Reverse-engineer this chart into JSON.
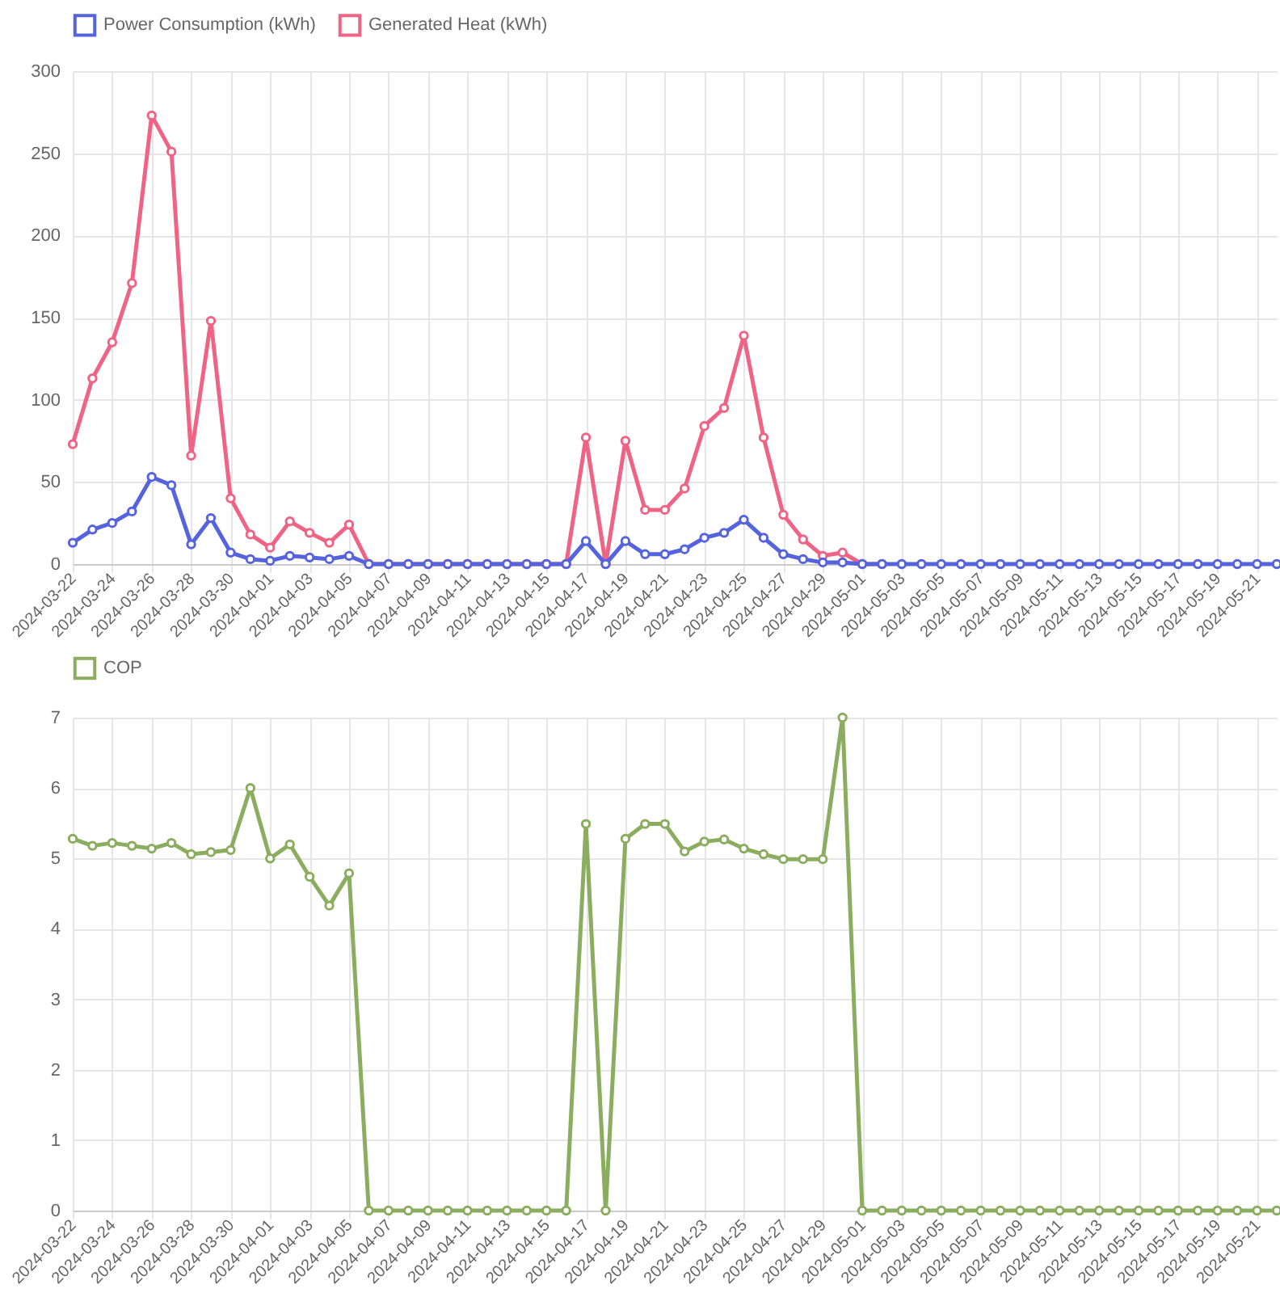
{
  "chart_data": [
    {
      "type": "line",
      "categories": [
        "2024-03-22",
        null,
        "2024-03-24",
        null,
        "2024-03-26",
        null,
        "2024-03-28",
        null,
        "2024-03-30",
        null,
        "2024-04-01",
        null,
        "2024-04-03",
        null,
        "2024-04-05",
        null,
        "2024-04-07",
        null,
        "2024-04-09",
        null,
        "2024-04-11",
        null,
        "2024-04-13",
        null,
        "2024-04-15",
        null,
        "2024-04-17",
        null,
        "2024-04-19",
        null,
        "2024-04-21",
        null,
        "2024-04-23",
        null,
        "2024-04-25",
        null,
        "2024-04-27",
        null,
        "2024-04-29",
        null,
        "2024-05-01",
        null,
        "2024-05-03",
        null,
        "2024-05-05",
        null,
        "2024-05-07",
        null,
        "2024-05-09",
        null,
        "2024-05-11",
        null,
        "2024-05-13",
        null,
        "2024-05-15",
        null,
        "2024-05-17",
        null,
        "2024-05-19",
        null,
        "2024-05-21",
        null
      ],
      "series": [
        {
          "name": "Power Consumption (kWh)",
          "color": "#5563de",
          "values": [
            13,
            21,
            25,
            32,
            53,
            48,
            12,
            28,
            7,
            3,
            2,
            5,
            4,
            3,
            5,
            0,
            0,
            0,
            0,
            0,
            0,
            0,
            0,
            0,
            0,
            0,
            14,
            0,
            14,
            6,
            6,
            9,
            16,
            19,
            27,
            16,
            6,
            3,
            1,
            1,
            0,
            0,
            0,
            0,
            0,
            0,
            0,
            0,
            0,
            0,
            0,
            0,
            0,
            0,
            0,
            0,
            0,
            0,
            0,
            0,
            0,
            0
          ]
        },
        {
          "name": "Generated Heat (kWh)",
          "color": "#ef6384",
          "values": [
            73,
            113,
            135,
            171,
            273,
            251,
            66,
            148,
            40,
            18,
            10,
            26,
            19,
            13,
            24,
            0,
            0,
            0,
            0,
            0,
            0,
            0,
            0,
            0,
            0,
            0,
            77,
            0,
            75,
            33,
            33,
            46,
            84,
            95,
            139,
            77,
            30,
            15,
            5,
            7,
            0,
            0,
            null,
            null,
            null,
            null,
            null,
            null,
            null,
            null,
            null,
            null,
            null,
            null,
            null,
            null,
            null,
            null,
            null,
            null,
            null,
            null
          ]
        }
      ],
      "ylim": [
        0,
        300
      ],
      "yticks": [
        0,
        50,
        100,
        150,
        200,
        250,
        300
      ],
      "grid": true,
      "legend": "top",
      "marker": "circle"
    },
    {
      "type": "line",
      "categories": [
        "2024-03-22",
        null,
        "2024-03-24",
        null,
        "2024-03-26",
        null,
        "2024-03-28",
        null,
        "2024-03-30",
        null,
        "2024-04-01",
        null,
        "2024-04-03",
        null,
        "2024-04-05",
        null,
        "2024-04-07",
        null,
        "2024-04-09",
        null,
        "2024-04-11",
        null,
        "2024-04-13",
        null,
        "2024-04-15",
        null,
        "2024-04-17",
        null,
        "2024-04-19",
        null,
        "2024-04-21",
        null,
        "2024-04-23",
        null,
        "2024-04-25",
        null,
        "2024-04-27",
        null,
        "2024-04-29",
        null,
        "2024-05-01",
        null,
        "2024-05-03",
        null,
        "2024-05-05",
        null,
        "2024-05-07",
        null,
        "2024-05-09",
        null,
        "2024-05-11",
        null,
        "2024-05-13",
        null,
        "2024-05-15",
        null,
        "2024-05-17",
        null,
        "2024-05-19",
        null,
        "2024-05-21",
        null
      ],
      "series": [
        {
          "name": "COP",
          "color": "#8aad5f",
          "values": [
            5.28,
            5.18,
            5.22,
            5.18,
            5.14,
            5.22,
            5.06,
            5.09,
            5.12,
            6.0,
            5.0,
            5.2,
            4.74,
            4.33,
            4.79,
            0,
            0,
            0,
            0,
            0,
            0,
            0,
            0,
            0,
            0,
            0,
            5.49,
            0,
            5.28,
            5.49,
            5.49,
            5.1,
            5.24,
            5.27,
            5.14,
            5.06,
            4.99,
            4.99,
            4.99,
            7.0,
            0,
            0,
            0,
            0,
            0,
            0,
            0,
            0,
            0,
            0,
            0,
            0,
            0,
            0,
            0,
            0,
            0,
            0,
            0,
            0,
            0,
            0
          ]
        }
      ],
      "ylim": [
        0,
        7
      ],
      "yticks": [
        0,
        1,
        2,
        3,
        4,
        5,
        6,
        7
      ],
      "grid": true,
      "legend": "top",
      "marker": "circle"
    }
  ]
}
